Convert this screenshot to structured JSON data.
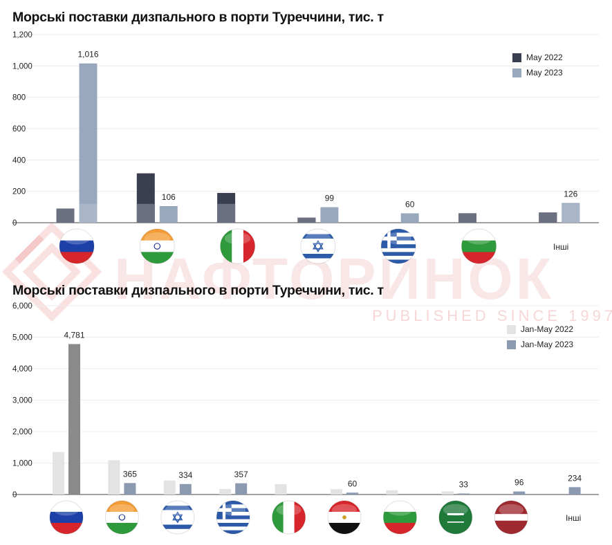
{
  "colors": {
    "c1_2022": "#3a3f50",
    "c1_2022_dim": "#6b7080",
    "c1_2023": "#9aa8be",
    "c2_2022": "#e3e3e3",
    "c2_2023": "#8c9ab1",
    "c2_2023_first": "#8a8a8a",
    "axis": "#444444",
    "grid": "#ececec"
  },
  "watermark": {
    "brand_left": "НАФТО",
    "brand_right": "РИНОК",
    "tagline": "PUBLISHED SINCE 1997"
  },
  "chart_data": [
    {
      "type": "bar",
      "title": "Морські поставки дизпального в порти Туреччини, тис. т",
      "ylim": [
        0,
        1200
      ],
      "yticks": [
        "0",
        "200",
        "400",
        "600",
        "800",
        "1,000",
        "1,200"
      ],
      "categories": [
        "Russia",
        "India",
        "Italy",
        "Israel",
        "Greece",
        "Bulgaria",
        "Інші"
      ],
      "category_icons": [
        "russia-flag-icon",
        "india-flag-icon",
        "italy-flag-icon",
        "israel-flag-icon",
        "greece-flag-icon",
        "bulgaria-flag-icon",
        null
      ],
      "others_label": "Інші",
      "legend_position": "top-right",
      "series": [
        {
          "name": "May 2022",
          "values": [
            90,
            315,
            190,
            32,
            0,
            60,
            65
          ],
          "labels": [
            "",
            "",
            "",
            "",
            "",
            "",
            ""
          ]
        },
        {
          "name": "May 2023",
          "values": [
            1016,
            106,
            0,
            99,
            60,
            0,
            126
          ],
          "labels": [
            "1,016",
            "106",
            "",
            "99",
            "60",
            "",
            "126"
          ]
        }
      ]
    },
    {
      "type": "bar",
      "title": "Морські поставки дизпального в порти Туреччини, тис. т",
      "ylim": [
        0,
        6000
      ],
      "yticks": [
        "0",
        "1,000",
        "2,000",
        "3,000",
        "4,000",
        "5,000",
        "6,000"
      ],
      "categories": [
        "Russia",
        "India",
        "Israel",
        "Greece",
        "Italy",
        "Egypt",
        "Bulgaria",
        "Saudi Arabia",
        "Latvia",
        "Інші"
      ],
      "category_icons": [
        "russia-flag-icon",
        "india-flag-icon",
        "israel-flag-icon",
        "greece-flag-icon",
        "italy-flag-icon",
        "egypt-flag-icon",
        "bulgaria-flag-icon",
        "saudi-arabia-flag-icon",
        "latvia-flag-icon",
        null
      ],
      "others_label": "Інші",
      "legend_position": "top-right",
      "series": [
        {
          "name": "Jan-May 2022",
          "values": [
            1350,
            1090,
            445,
            175,
            330,
            170,
            135,
            100,
            0,
            0
          ],
          "labels": [
            "",
            "",
            "",
            "",
            "",
            "",
            "",
            "",
            "",
            ""
          ]
        },
        {
          "name": "Jan-May 2023",
          "values": [
            4781,
            365,
            334,
            357,
            0,
            60,
            0,
            33,
            96,
            234
          ],
          "labels": [
            "4,781",
            "365",
            "334",
            "357",
            "",
            "60",
            "",
            "33",
            "96",
            "234"
          ]
        }
      ]
    }
  ]
}
